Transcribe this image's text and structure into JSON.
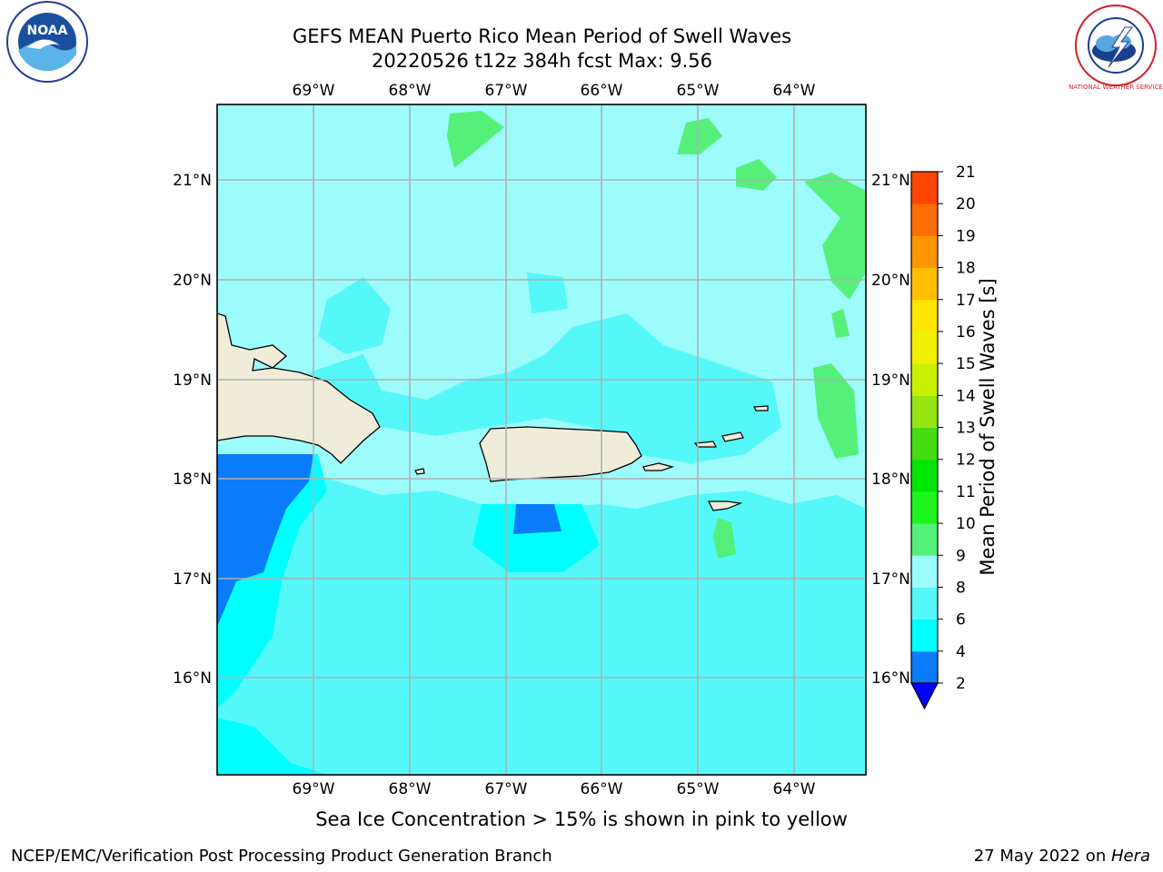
{
  "title": {
    "line1": "GEFS MEAN Puerto Rico Mean Period of Swell Waves",
    "line2": "20220526 t12z 384h fcst   Max: 9.56"
  },
  "map": {
    "lon_ticks": [
      "69°W",
      "68°W",
      "67°W",
      "66°W",
      "65°W",
      "64°W"
    ],
    "lat_ticks": [
      "21°N",
      "20°N",
      "19°N",
      "18°N",
      "17°N",
      "16°N"
    ],
    "land_color": "#efedd9",
    "grid_color": "#b0b0b0"
  },
  "colorbar": {
    "label": "Mean Period of Swell Waves [s]",
    "ticks": [
      "2",
      "4",
      "6",
      "8",
      "9",
      "10",
      "11",
      "12",
      "13",
      "14",
      "15",
      "16",
      "17",
      "18",
      "19",
      "20",
      "21"
    ],
    "colors": [
      "#0000ff",
      "#0a7bfa",
      "#00ffff",
      "#55f8f8",
      "#9cfcfc",
      "#55f07a",
      "#1ef51e",
      "#00e600",
      "#46dc14",
      "#96e614",
      "#c8f000",
      "#f0f000",
      "#ffe600",
      "#ffbe00",
      "#ff9600",
      "#ff6e00",
      "#ff4600",
      "#ff0000"
    ]
  },
  "note": "Sea Ice Concentration > 15% is shown in pink to yellow",
  "footer": {
    "left": "NCEP/EMC/Verification Post Processing Product Generation Branch",
    "date": "27 May 2022 on ",
    "machine": "Hera"
  },
  "logos": {
    "noaa_text": "NOAA",
    "nws_text": "NATIONAL WEATHER SERVICE"
  }
}
